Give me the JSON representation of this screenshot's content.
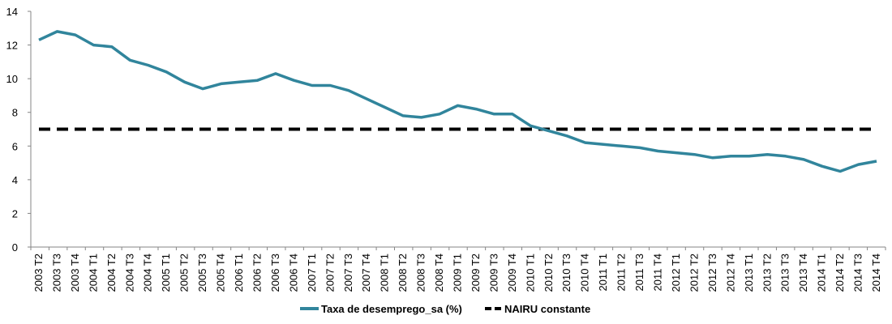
{
  "chart_data": {
    "type": "line",
    "title": "",
    "xlabel": "",
    "ylabel": "",
    "ylim": [
      0,
      14
    ],
    "yticks": [
      0,
      2,
      4,
      6,
      8,
      10,
      12,
      14
    ],
    "grid": false,
    "legend_position": "bottom",
    "categories": [
      "2003 T2",
      "2003 T3",
      "2003 T4",
      "2004 T1",
      "2004 T2",
      "2004 T3",
      "2004 T4",
      "2005 T1",
      "2005 T2",
      "2005 T3",
      "2005 T4",
      "2006 T1",
      "2006 T2",
      "2006 T3",
      "2006 T4",
      "2007 T1",
      "2007 T2",
      "2007 T3",
      "2007 T4",
      "2008 T1",
      "2008 T2",
      "2008 T3",
      "2008 T4",
      "2009 T1",
      "2009 T2",
      "2009 T3",
      "2009 T4",
      "2010 T1",
      "2010 T2",
      "2010 T3",
      "2010 T4",
      "2011 T1",
      "2011 T2",
      "2011 T3",
      "2011 T4",
      "2012 T1",
      "2012 T2",
      "2012 T3",
      "2012 T4",
      "2013 T1",
      "2013 T2",
      "2013 T3",
      "2013 T4",
      "2014 T1",
      "2014 T2",
      "2014 T3",
      "2014 T4"
    ],
    "series": [
      {
        "name": "Taxa de desemprego_sa (%)",
        "color": "#31859c",
        "style": "solid",
        "values": [
          12.3,
          12.8,
          12.6,
          12.0,
          11.9,
          11.1,
          10.8,
          10.4,
          9.8,
          9.4,
          9.7,
          9.8,
          9.9,
          10.3,
          9.9,
          9.6,
          9.6,
          9.3,
          8.8,
          8.3,
          7.8,
          7.7,
          7.9,
          8.4,
          8.2,
          7.9,
          7.9,
          7.2,
          6.9,
          6.6,
          6.2,
          6.1,
          6.0,
          5.9,
          5.7,
          5.6,
          5.5,
          5.3,
          5.4,
          5.4,
          5.5,
          5.4,
          5.2,
          4.8,
          4.5,
          4.9,
          5.1
        ]
      },
      {
        "name": "NAIRU constante",
        "color": "#000000",
        "style": "dashed",
        "values": [
          7.0,
          7.0,
          7.0,
          7.0,
          7.0,
          7.0,
          7.0,
          7.0,
          7.0,
          7.0,
          7.0,
          7.0,
          7.0,
          7.0,
          7.0,
          7.0,
          7.0,
          7.0,
          7.0,
          7.0,
          7.0,
          7.0,
          7.0,
          7.0,
          7.0,
          7.0,
          7.0,
          7.0,
          7.0,
          7.0,
          7.0,
          7.0,
          7.0,
          7.0,
          7.0,
          7.0,
          7.0,
          7.0,
          7.0,
          7.0,
          7.0,
          7.0,
          7.0,
          7.0,
          7.0,
          7.0,
          7.0
        ]
      }
    ]
  }
}
